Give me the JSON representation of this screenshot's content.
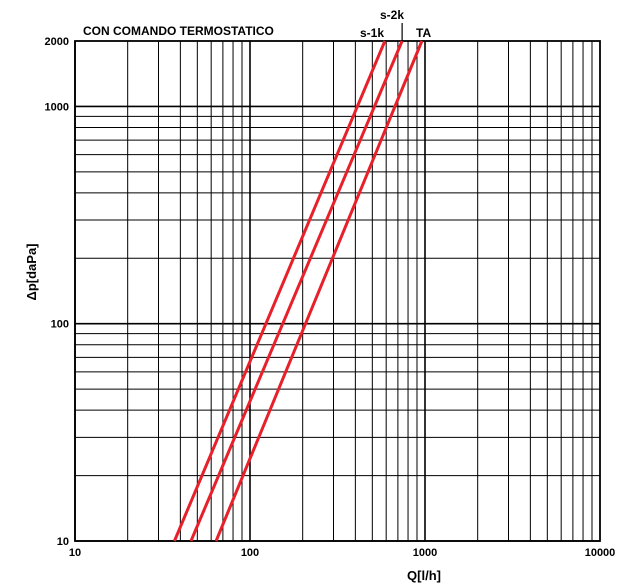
{
  "chart_data": {
    "type": "line",
    "title": "CON COMANDO TERMOSTATICO",
    "xlabel": "Q[l/h]",
    "ylabel": "Δp[daPa]",
    "xscale": "log",
    "yscale": "log",
    "xlim": [
      10,
      10000
    ],
    "ylim": [
      10,
      2000
    ],
    "x_ticks": [
      "10",
      "100",
      "1000",
      "10000"
    ],
    "y_ticks": [
      "10",
      "100",
      "1000",
      "2000"
    ],
    "grid": true,
    "colors": {
      "series": "#e8202a",
      "grid": "#000000"
    },
    "series": [
      {
        "name": "s-1k",
        "x": [
          37,
          590
        ],
        "y": [
          10,
          2000
        ]
      },
      {
        "name": "s-2k",
        "x": [
          46,
          740
        ],
        "y": [
          10,
          2000
        ]
      },
      {
        "name": "TA",
        "x": [
          64,
          960
        ],
        "y": [
          10,
          2000
        ]
      }
    ]
  }
}
